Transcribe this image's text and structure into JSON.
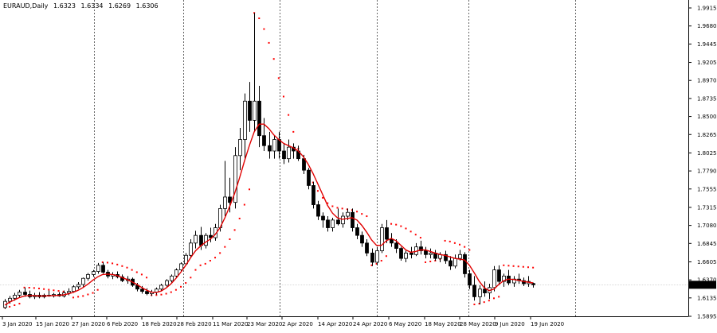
{
  "header": {
    "symbol": "EURAUD,Daily",
    "open": "1.6323",
    "high": "1.6334",
    "low": "1.6269",
    "close": "1.6306"
  },
  "price_axis": {
    "labels": [
      "1.9915",
      "1.9680",
      "1.9445",
      "1.9205",
      "1.8970",
      "1.8735",
      "1.8500",
      "1.8265",
      "1.8025",
      "1.7790",
      "1.7555",
      "1.7315",
      "1.7080",
      "1.6845",
      "1.6605",
      "1.6370",
      "1.6135",
      "1.5895"
    ],
    "current_price": "1.6306"
  },
  "time_axis": {
    "labels": [
      "3 Jan 2020",
      "15 Jan 2020",
      "27 Jan 2020",
      "6 Feb 2020",
      "18 Feb 2020",
      "28 Feb 2020",
      "11 Mar 2020",
      "23 Mar 2020",
      "2 Apr 2020",
      "14 Apr 2020",
      "24 Apr 2020",
      "6 May 2020",
      "18 May 2020",
      "28 May 2020",
      "9 Jun 2020",
      "19 Jun 2020"
    ]
  },
  "colors": {
    "background": "#ffffff",
    "bull_candle": "#ffffff",
    "bear_candle": "#000000",
    "moving_average": "#e00000",
    "parabolic_sar": "#ff0000",
    "grid_separator": "#000000",
    "current_price_line": "#c0c0c0"
  },
  "chart_data": {
    "type": "candlestick",
    "title": "EURAUD,Daily",
    "ylim": [
      1.5895,
      1.9915
    ],
    "grid": false,
    "candles": [
      [
        1.601,
        1.612,
        1.599,
        1.609
      ],
      [
        1.609,
        1.616,
        1.606,
        1.613
      ],
      [
        1.613,
        1.62,
        1.61,
        1.617
      ],
      [
        1.617,
        1.624,
        1.614,
        1.621
      ],
      [
        1.621,
        1.627,
        1.615,
        1.618
      ],
      [
        1.618,
        1.623,
        1.613,
        1.615
      ],
      [
        1.615,
        1.62,
        1.612,
        1.617
      ],
      [
        1.617,
        1.621,
        1.613,
        1.615
      ],
      [
        1.615,
        1.619,
        1.613,
        1.617
      ],
      [
        1.617,
        1.623,
        1.615,
        1.616
      ],
      [
        1.616,
        1.62,
        1.614,
        1.618
      ],
      [
        1.618,
        1.621,
        1.615,
        1.616
      ],
      [
        1.616,
        1.623,
        1.614,
        1.62
      ],
      [
        1.62,
        1.626,
        1.617,
        1.622
      ],
      [
        1.622,
        1.63,
        1.62,
        1.628
      ],
      [
        1.628,
        1.634,
        1.625,
        1.631
      ],
      [
        1.631,
        1.64,
        1.628,
        1.639
      ],
      [
        1.639,
        1.646,
        1.636,
        1.644
      ],
      [
        1.644,
        1.65,
        1.641,
        1.648
      ],
      [
        1.648,
        1.659,
        1.645,
        1.656
      ],
      [
        1.656,
        1.66,
        1.645,
        1.647
      ],
      [
        1.647,
        1.65,
        1.639,
        1.642
      ],
      [
        1.642,
        1.647,
        1.638,
        1.644
      ],
      [
        1.644,
        1.648,
        1.639,
        1.641
      ],
      [
        1.641,
        1.644,
        1.634,
        1.636
      ],
      [
        1.636,
        1.642,
        1.632,
        1.638
      ],
      [
        1.638,
        1.64,
        1.628,
        1.63
      ],
      [
        1.63,
        1.633,
        1.622,
        1.625
      ],
      [
        1.625,
        1.629,
        1.619,
        1.622
      ],
      [
        1.622,
        1.626,
        1.617,
        1.619
      ],
      [
        1.619,
        1.624,
        1.616,
        1.621
      ],
      [
        1.621,
        1.627,
        1.618,
        1.625
      ],
      [
        1.625,
        1.632,
        1.622,
        1.63
      ],
      [
        1.63,
        1.638,
        1.628,
        1.636
      ],
      [
        1.636,
        1.644,
        1.633,
        1.642
      ],
      [
        1.642,
        1.652,
        1.64,
        1.65
      ],
      [
        1.65,
        1.66,
        1.648,
        1.658
      ],
      [
        1.658,
        1.672,
        1.656,
        1.669
      ],
      [
        1.669,
        1.69,
        1.666,
        1.685
      ],
      [
        1.685,
        1.701,
        1.678,
        1.695
      ],
      [
        1.695,
        1.706,
        1.676,
        1.682
      ],
      [
        1.682,
        1.698,
        1.678,
        1.695
      ],
      [
        1.695,
        1.705,
        1.686,
        1.692
      ],
      [
        1.692,
        1.71,
        1.688,
        1.705
      ],
      [
        1.705,
        1.735,
        1.7,
        1.73
      ],
      [
        1.73,
        1.792,
        1.72,
        1.745
      ],
      [
        1.745,
        1.77,
        1.725,
        1.738
      ],
      [
        1.738,
        1.81,
        1.73,
        1.799
      ],
      [
        1.799,
        1.835,
        1.78,
        1.82
      ],
      [
        1.82,
        1.88,
        1.795,
        1.87
      ],
      [
        1.87,
        1.895,
        1.83,
        1.845
      ],
      [
        1.845,
        1.985,
        1.83,
        1.87
      ],
      [
        1.87,
        1.89,
        1.81,
        1.825
      ],
      [
        1.825,
        1.848,
        1.805,
        1.812
      ],
      [
        1.812,
        1.83,
        1.795,
        1.805
      ],
      [
        1.805,
        1.825,
        1.795,
        1.82
      ],
      [
        1.82,
        1.83,
        1.795,
        1.805
      ],
      [
        1.805,
        1.815,
        1.788,
        1.795
      ],
      [
        1.795,
        1.82,
        1.79,
        1.81
      ],
      [
        1.81,
        1.815,
        1.795,
        1.805
      ],
      [
        1.805,
        1.812,
        1.792,
        1.795
      ],
      [
        1.795,
        1.8,
        1.775,
        1.78
      ],
      [
        1.78,
        1.783,
        1.755,
        1.76
      ],
      [
        1.76,
        1.765,
        1.73,
        1.735
      ],
      [
        1.735,
        1.74,
        1.715,
        1.72
      ],
      [
        1.72,
        1.725,
        1.705,
        1.715
      ],
      [
        1.715,
        1.72,
        1.7,
        1.705
      ],
      [
        1.705,
        1.718,
        1.7,
        1.715
      ],
      [
        1.715,
        1.73,
        1.708,
        1.71
      ],
      [
        1.71,
        1.725,
        1.705,
        1.72
      ],
      [
        1.72,
        1.73,
        1.715,
        1.725
      ],
      [
        1.725,
        1.73,
        1.7,
        1.705
      ],
      [
        1.705,
        1.71,
        1.69,
        1.695
      ],
      [
        1.695,
        1.7,
        1.68,
        1.685
      ],
      [
        1.685,
        1.69,
        1.668,
        1.672
      ],
      [
        1.672,
        1.678,
        1.655,
        1.66
      ],
      [
        1.66,
        1.68,
        1.656,
        1.675
      ],
      [
        1.675,
        1.71,
        1.672,
        1.705
      ],
      [
        1.705,
        1.715,
        1.685,
        1.69
      ],
      [
        1.69,
        1.698,
        1.68,
        1.685
      ],
      [
        1.685,
        1.69,
        1.672,
        1.678
      ],
      [
        1.678,
        1.68,
        1.662,
        1.665
      ],
      [
        1.665,
        1.675,
        1.66,
        1.672
      ],
      [
        1.672,
        1.68,
        1.665,
        1.67
      ],
      [
        1.67,
        1.685,
        1.668,
        1.68
      ],
      [
        1.68,
        1.688,
        1.67,
        1.675
      ],
      [
        1.675,
        1.68,
        1.665,
        1.67
      ],
      [
        1.67,
        1.678,
        1.665,
        1.672
      ],
      [
        1.672,
        1.676,
        1.662,
        1.665
      ],
      [
        1.665,
        1.673,
        1.66,
        1.67
      ],
      [
        1.67,
        1.675,
        1.658,
        1.662
      ],
      [
        1.662,
        1.668,
        1.65,
        1.655
      ],
      [
        1.655,
        1.67,
        1.652,
        1.665
      ],
      [
        1.665,
        1.676,
        1.662,
        1.67
      ],
      [
        1.67,
        1.673,
        1.64,
        1.645
      ],
      [
        1.645,
        1.65,
        1.625,
        1.63
      ],
      [
        1.63,
        1.642,
        1.61,
        1.615
      ],
      [
        1.615,
        1.63,
        1.605,
        1.625
      ],
      [
        1.625,
        1.635,
        1.615,
        1.62
      ],
      [
        1.62,
        1.632,
        1.612,
        1.627
      ],
      [
        1.627,
        1.655,
        1.622,
        1.65
      ],
      [
        1.65,
        1.656,
        1.63,
        1.635
      ],
      [
        1.635,
        1.645,
        1.628,
        1.642
      ],
      [
        1.642,
        1.65,
        1.63,
        1.633
      ],
      [
        1.633,
        1.642,
        1.628,
        1.638
      ],
      [
        1.638,
        1.645,
        1.632,
        1.636
      ],
      [
        1.636,
        1.64,
        1.629,
        1.632
      ],
      [
        1.632,
        1.642,
        1.628,
        1.635
      ],
      [
        1.6323,
        1.6334,
        1.6269,
        1.6306
      ]
    ],
    "moving_average": [
      1.604,
      1.608,
      1.611,
      1.614,
      1.616,
      1.6165,
      1.6165,
      1.616,
      1.616,
      1.6162,
      1.6165,
      1.6168,
      1.6175,
      1.6188,
      1.6208,
      1.6235,
      1.627,
      1.6315,
      1.6365,
      1.641,
      1.644,
      1.6445,
      1.644,
      1.6425,
      1.64,
      1.6375,
      1.6345,
      1.631,
      1.627,
      1.6235,
      1.621,
      1.6205,
      1.6225,
      1.6265,
      1.632,
      1.639,
      1.647,
      1.656,
      1.666,
      1.675,
      1.681,
      1.686,
      1.69,
      1.696,
      1.705,
      1.718,
      1.733,
      1.75,
      1.77,
      1.792,
      1.812,
      1.83,
      1.84,
      1.84,
      1.834,
      1.826,
      1.82,
      1.815,
      1.812,
      1.809,
      1.805,
      1.798,
      1.788,
      1.776,
      1.762,
      1.748,
      1.734,
      1.724,
      1.718,
      1.716,
      1.717,
      1.718,
      1.715,
      1.708,
      1.699,
      1.689,
      1.682,
      1.682,
      1.688,
      1.691,
      1.688,
      1.682,
      1.676,
      1.673,
      1.674,
      1.676,
      1.676,
      1.674,
      1.672,
      1.67,
      1.669,
      1.667,
      1.665,
      1.664,
      1.663,
      1.656,
      1.646,
      1.635,
      1.627,
      1.623,
      1.625,
      1.631,
      1.636,
      1.638,
      1.6375,
      1.6365,
      1.635,
      1.634,
      1.633
    ],
    "parabolic_sar": [
      1.601,
      1.602,
      1.604,
      1.606,
      1.627,
      1.6268,
      1.6264,
      1.6258,
      1.625,
      1.6242,
      1.6234,
      1.6226,
      1.6218,
      1.621,
      1.614,
      1.615,
      1.616,
      1.618,
      1.62,
      1.624,
      1.66,
      1.6595,
      1.6585,
      1.657,
      1.655,
      1.653,
      1.65,
      1.647,
      1.644,
      1.64,
      1.617,
      1.6172,
      1.6178,
      1.619,
      1.621,
      1.624,
      1.628,
      1.633,
      1.64,
      1.65,
      1.656,
      1.658,
      1.662,
      1.666,
      1.672,
      1.68,
      1.69,
      1.702,
      1.717,
      1.735,
      1.755,
      1.985,
      1.978,
      1.964,
      1.946,
      1.925,
      1.9,
      1.876,
      1.852,
      1.83,
      1.808,
      1.79,
      1.776,
      1.764,
      1.753,
      1.744,
      1.737,
      1.733,
      1.731,
      1.73,
      1.729,
      1.728,
      1.726,
      1.723,
      1.72,
      1.656,
      1.658,
      1.662,
      1.668,
      1.71,
      1.709,
      1.707,
      1.704,
      1.7,
      1.696,
      1.692,
      1.66,
      1.661,
      1.662,
      1.664,
      1.688,
      1.687,
      1.685,
      1.683,
      1.68,
      1.676,
      1.605,
      1.606,
      1.608,
      1.61,
      1.613,
      1.615,
      1.656,
      1.6555,
      1.655,
      1.6545,
      1.654,
      1.6535,
      1.653
    ]
  }
}
